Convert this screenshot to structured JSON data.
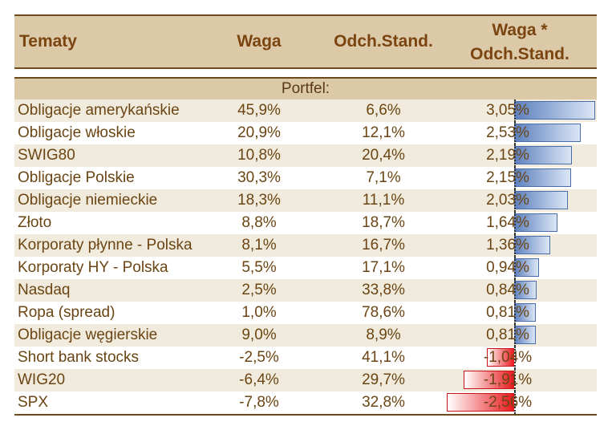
{
  "header": {
    "col1": "Tematy",
    "col2": "Waga",
    "col3": "Odch.Stand.",
    "col4_line1": "Waga *",
    "col4_line2": "Odch.Stand."
  },
  "section_label": "Portfel:",
  "colors": {
    "positive_bar": "#5b7fbd",
    "negative_bar": "#e8161b",
    "header_bg": "#dcc9a8"
  },
  "rows": [
    {
      "name": "Obligacje amerykańskie",
      "waga": "45,9%",
      "odch": "6,6%",
      "product": "3,05%",
      "value": 3.05
    },
    {
      "name": "Obligacje włoskie",
      "waga": "20,9%",
      "odch": "12,1%",
      "product": "2,53%",
      "value": 2.53
    },
    {
      "name": "SWIG80",
      "waga": "10,8%",
      "odch": "20,4%",
      "product": "2,19%",
      "value": 2.19
    },
    {
      "name": "Obligacje Polskie",
      "waga": "30,3%",
      "odch": "7,1%",
      "product": "2,15%",
      "value": 2.15
    },
    {
      "name": "Obligacje niemieckie",
      "waga": "18,3%",
      "odch": "11,1%",
      "product": "2,03%",
      "value": 2.03
    },
    {
      "name": "Złoto",
      "waga": "8,8%",
      "odch": "18,7%",
      "product": "1,64%",
      "value": 1.64
    },
    {
      "name": "Korporaty płynne - Polska",
      "waga": "8,1%",
      "odch": "16,7%",
      "product": "1,36%",
      "value": 1.36
    },
    {
      "name": "Korporaty HY - Polska",
      "waga": "5,5%",
      "odch": "17,1%",
      "product": "0,94%",
      "value": 0.94
    },
    {
      "name": "Nasdaq",
      "waga": "2,5%",
      "odch": "33,8%",
      "product": "0,84%",
      "value": 0.84
    },
    {
      "name": "Ropa (spread)",
      "waga": "1,0%",
      "odch": "78,6%",
      "product": "0,81%",
      "value": 0.81
    },
    {
      "name": "Obligacje węgierskie",
      "waga": "9,0%",
      "odch": "8,9%",
      "product": "0,81%",
      "value": 0.81
    },
    {
      "name": "Short bank stocks",
      "waga": "-2,5%",
      "odch": "41,1%",
      "product": "-1,04%",
      "value": -1.04
    },
    {
      "name": "WIG20",
      "waga": "-6,4%",
      "odch": "29,7%",
      "product": "-1,91%",
      "value": -1.91
    },
    {
      "name": "SPX",
      "waga": "-7,8%",
      "odch": "32,8%",
      "product": "-2,56%",
      "value": -2.56
    }
  ]
}
